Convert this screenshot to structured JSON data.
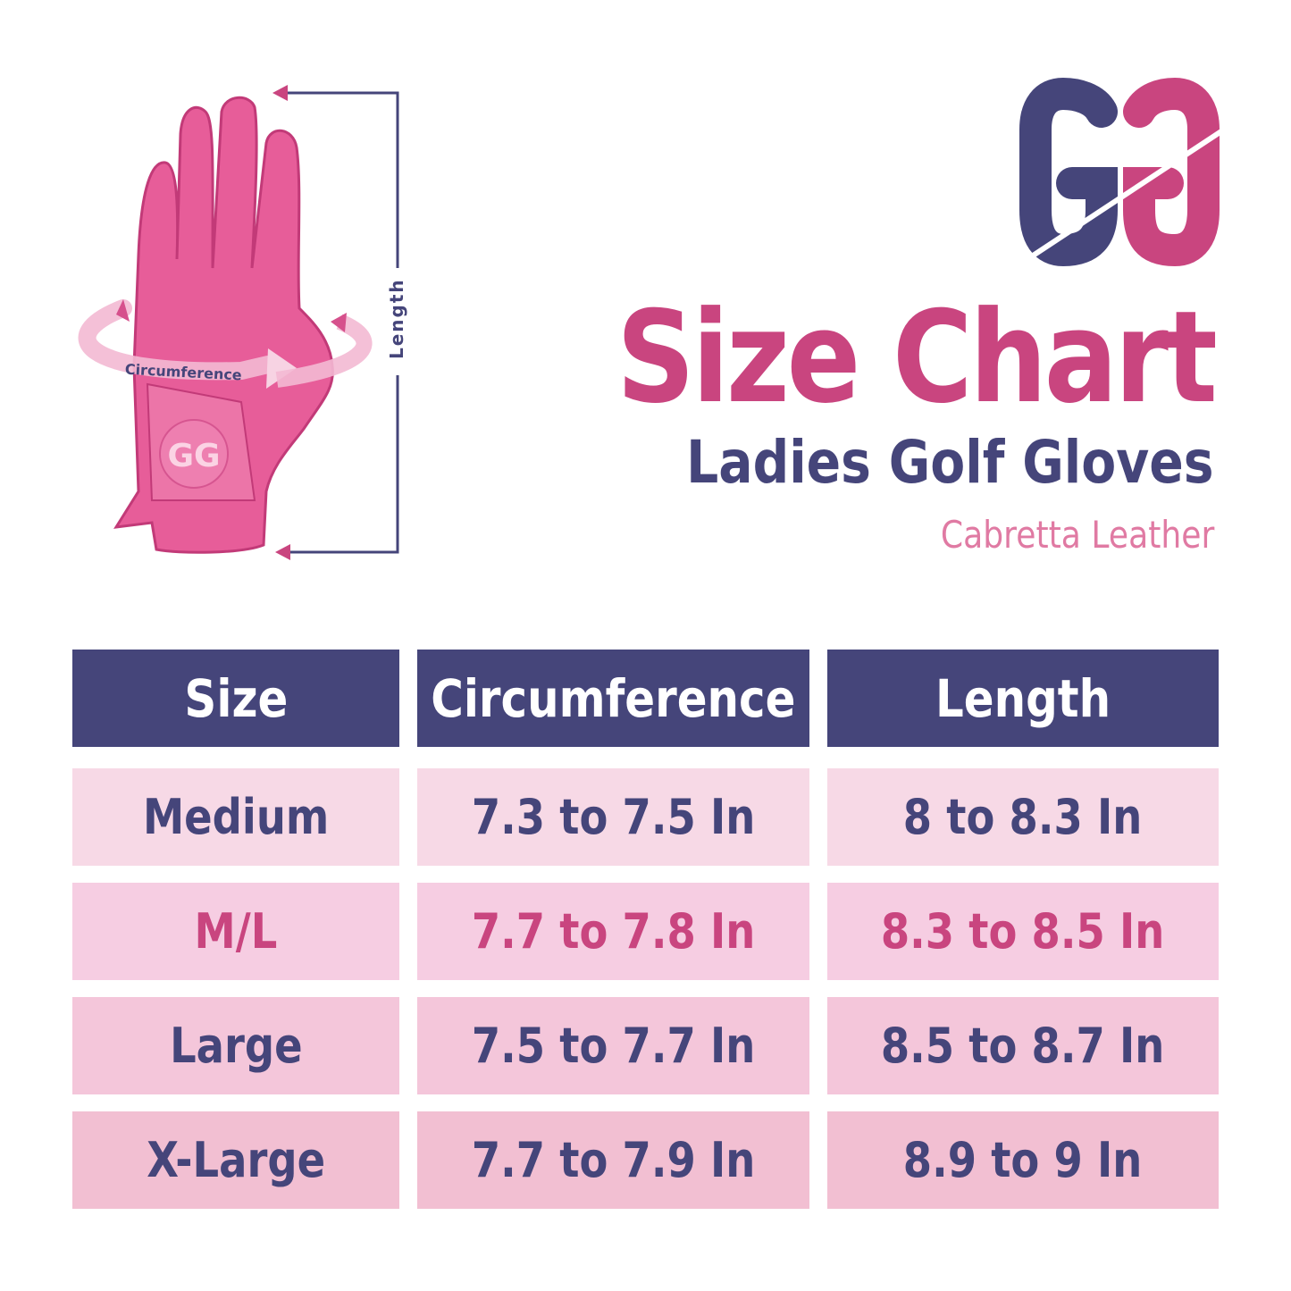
{
  "brand": {
    "logo_text": "GG",
    "navy": "#45457a",
    "pink": "#c9457f"
  },
  "illustration": {
    "circumference_label": "Circumference",
    "length_label": "Length",
    "patch_logo": "GG"
  },
  "heading": {
    "title": "Size Chart",
    "subtitle": "Ladies Golf Gloves",
    "material": "Cabretta Leather"
  },
  "table": {
    "headers": [
      "Size",
      "Circumference",
      "Length"
    ],
    "rows": [
      {
        "size": "Medium",
        "circumference": "7.3 to 7.5 In",
        "length": "8 to 8.3 In",
        "bg": "#f7d9e6",
        "text_color": "#45457a"
      },
      {
        "size": "M/L",
        "circumference": "7.7 to 7.8 In",
        "length": "8.3 to 8.5 In",
        "bg": "#f6cde2",
        "text_color": "#c9457f"
      },
      {
        "size": "Large",
        "circumference": "7.5 to 7.7 In",
        "length": "8.5 to 8.7 In",
        "bg": "#f4c6da",
        "text_color": "#45457a"
      },
      {
        "size": "X-Large",
        "circumference": "7.7 to 7.9 In",
        "length": "8.9 to 9 In",
        "bg": "#f2bfd2",
        "text_color": "#45457a"
      }
    ]
  }
}
